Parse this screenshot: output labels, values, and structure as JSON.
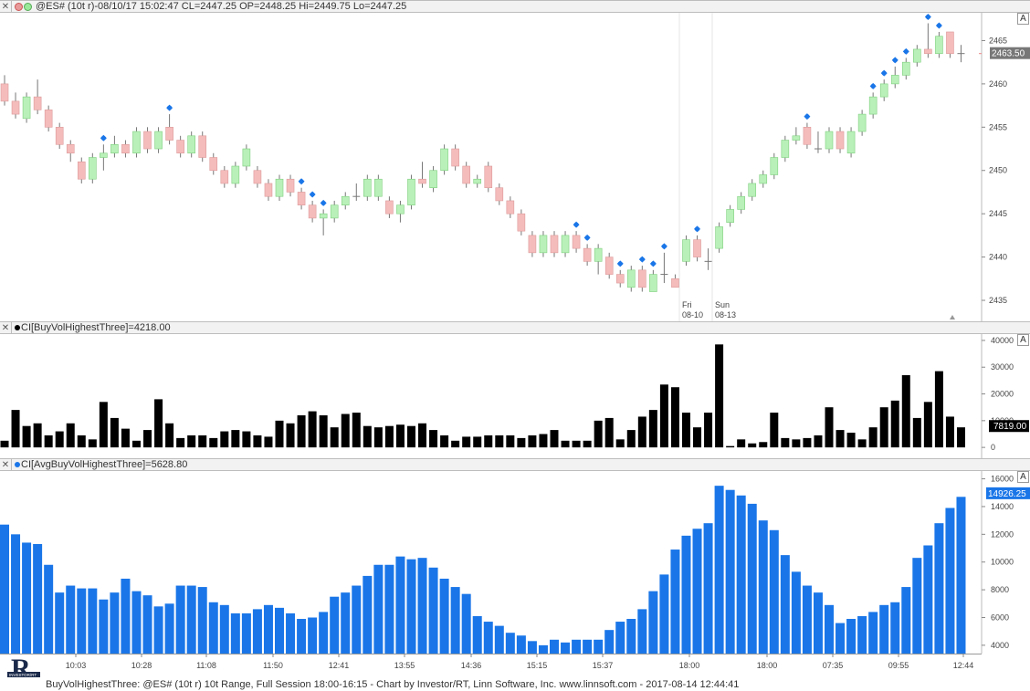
{
  "price_pane": {
    "header": "@ES# (10t r)-08/10/17 15:02:47 CL=2447.25 OP=2448.25 Hi=2449.75 Lo=2447.25",
    "y_ticks": [
      "2465",
      "2460",
      "2455",
      "2450",
      "2445",
      "2440",
      "2435"
    ],
    "last_price": "2463.50",
    "date_labels": [
      {
        "day": "Fri",
        "date": "08-10"
      },
      {
        "day": "Sun",
        "date": "08-13"
      }
    ],
    "colors": {
      "up": "#b9f0b9",
      "down": "#f5bcbc",
      "marker": "#1a76e8"
    }
  },
  "vol_pane": {
    "header": "CI[BuyVolHighestThree]=4218.00",
    "y_ticks": [
      "40000",
      "30000",
      "20000",
      "10000",
      "0"
    ],
    "last_value": "7819.00",
    "color": "#000000"
  },
  "avg_pane": {
    "header": "CI[AvgBuyVolHighestThree]=5628.80",
    "y_ticks": [
      "16000",
      "14000",
      "12000",
      "10000",
      "8000",
      "6000",
      "4000"
    ],
    "last_value": "14926.25",
    "color": "#1a76e8"
  },
  "x_axis": {
    "labels": [
      "10:03",
      "10:28",
      "11:08",
      "11:50",
      "12:41",
      "13:55",
      "14:36",
      "15:15",
      "15:37",
      "18:00",
      "18:00",
      "07:35",
      "09:55",
      "12:44"
    ]
  },
  "footer": "BuyVolHighestThree: @ES# (10t r) 10t Range, Full Session 18:00-16:15 - Chart by Investor/RT, Linn Software, Inc. www.linnsoft.com - 2017-08-14 12:44:41",
  "logo": {
    "letter": "R",
    "text": "INVESTOR/RT"
  },
  "chart_data": [
    {
      "type": "candlestick",
      "title": "@ES# (10t r)",
      "ylim": [
        2433,
        2468
      ],
      "candles": [
        [
          2460.0,
          2458.0,
          2461.0,
          2457.5
        ],
        [
          2458.0,
          2456.5,
          2459.0,
          2456.0
        ],
        [
          2456.0,
          2458.5,
          2459.0,
          2455.5
        ],
        [
          2458.5,
          2457.0,
          2460.5,
          2456.5
        ],
        [
          2457.0,
          2455.0,
          2457.5,
          2454.5
        ],
        [
          2455.0,
          2453.0,
          2455.5,
          2452.5
        ],
        [
          2453.0,
          2452.0,
          2453.5,
          2451.0
        ],
        [
          2451.0,
          2449.0,
          2451.5,
          2448.5
        ],
        [
          2449.0,
          2451.5,
          2452.0,
          2448.5
        ],
        [
          2451.5,
          2452.0,
          2453.0,
          2450.0
        ],
        [
          2452.0,
          2453.0,
          2454.0,
          2451.5
        ],
        [
          2453.0,
          2452.0,
          2453.5,
          2451.5
        ],
        [
          2452.0,
          2454.5,
          2455.0,
          2451.5
        ],
        [
          2454.5,
          2452.5,
          2455.0,
          2452.0
        ],
        [
          2452.5,
          2454.5,
          2455.0,
          2452.0
        ],
        [
          2455.0,
          2453.5,
          2456.5,
          2453.0
        ],
        [
          2453.5,
          2452.0,
          2454.0,
          2451.5
        ],
        [
          2452.0,
          2454.0,
          2454.5,
          2451.5
        ],
        [
          2454.0,
          2451.5,
          2454.5,
          2451.0
        ],
        [
          2451.5,
          2450.0,
          2452.0,
          2449.5
        ],
        [
          2450.0,
          2448.5,
          2450.5,
          2448.0
        ],
        [
          2448.5,
          2450.5,
          2451.0,
          2448.0
        ],
        [
          2450.5,
          2452.5,
          2453.0,
          2450.0
        ],
        [
          2450.0,
          2448.5,
          2450.5,
          2448.0
        ],
        [
          2448.5,
          2447.0,
          2449.0,
          2446.5
        ],
        [
          2447.0,
          2449.0,
          2449.5,
          2446.5
        ],
        [
          2449.0,
          2447.5,
          2449.5,
          2447.0
        ],
        [
          2447.5,
          2446.0,
          2448.0,
          2445.5
        ],
        [
          2446.0,
          2444.5,
          2446.5,
          2444.0
        ],
        [
          2444.5,
          2445.0,
          2445.5,
          2442.5
        ],
        [
          2444.5,
          2446.0,
          2446.5,
          2444.0
        ],
        [
          2446.0,
          2447.0,
          2447.5,
          2445.5
        ],
        [
          2447.0,
          2447.0,
          2448.5,
          2446.5
        ],
        [
          2447.0,
          2449.0,
          2449.5,
          2446.5
        ],
        [
          2447.0,
          2449.0,
          2449.5,
          2446.5
        ],
        [
          2446.5,
          2445.0,
          2447.0,
          2444.5
        ],
        [
          2445.0,
          2446.0,
          2446.5,
          2444.0
        ],
        [
          2446.0,
          2449.0,
          2449.5,
          2445.5
        ],
        [
          2449.0,
          2448.5,
          2451.0,
          2448.0
        ],
        [
          2448.0,
          2450.0,
          2450.5,
          2447.5
        ],
        [
          2450.0,
          2452.5,
          2453.0,
          2449.5
        ],
        [
          2452.5,
          2450.5,
          2453.0,
          2450.0
        ],
        [
          2450.5,
          2448.5,
          2451.0,
          2448.0
        ],
        [
          2448.5,
          2449.0,
          2449.5,
          2448.0
        ],
        [
          2450.5,
          2448.0,
          2451.0,
          2447.5
        ],
        [
          2448.0,
          2446.5,
          2448.5,
          2446.0
        ],
        [
          2446.5,
          2445.0,
          2447.0,
          2444.5
        ],
        [
          2445.0,
          2443.0,
          2445.5,
          2442.5
        ],
        [
          2442.5,
          2440.5,
          2443.0,
          2440.0
        ],
        [
          2440.5,
          2442.5,
          2443.0,
          2440.0
        ],
        [
          2442.5,
          2440.5,
          2443.0,
          2440.0
        ],
        [
          2440.5,
          2442.5,
          2443.0,
          2440.0
        ],
        [
          2442.5,
          2441.0,
          2443.0,
          2440.5
        ],
        [
          2441.0,
          2439.5,
          2441.5,
          2439.0
        ],
        [
          2439.5,
          2441.0,
          2441.5,
          2438.0
        ],
        [
          2440.0,
          2438.0,
          2440.5,
          2437.5
        ],
        [
          2438.0,
          2437.0,
          2438.5,
          2436.5
        ],
        [
          2436.5,
          2438.5,
          2439.0,
          2436.0
        ],
        [
          2438.5,
          2436.5,
          2439.0,
          2436.0
        ],
        [
          2436.0,
          2438.0,
          2438.5,
          2436.0
        ],
        [
          2438.0,
          2438.0,
          2440.5,
          2437.0
        ],
        [
          2437.5,
          2436.5,
          2438.0,
          2436.5
        ],
        [
          2439.5,
          2442.0,
          2442.5,
          2439.0
        ],
        [
          2442.0,
          2440.0,
          2442.5,
          2439.5
        ],
        [
          2439.5,
          2439.5,
          2441.0,
          2438.5
        ],
        [
          2441.0,
          2443.5,
          2444.0,
          2440.5
        ],
        [
          2444.0,
          2445.5,
          2446.0,
          2443.5
        ],
        [
          2445.5,
          2447.0,
          2447.5,
          2445.0
        ],
        [
          2447.0,
          2448.5,
          2449.0,
          2446.5
        ],
        [
          2448.5,
          2449.5,
          2450.0,
          2448.0
        ],
        [
          2449.5,
          2451.5,
          2452.0,
          2449.0
        ],
        [
          2451.5,
          2453.5,
          2454.0,
          2451.0
        ],
        [
          2453.5,
          2454.0,
          2455.0,
          2453.0
        ],
        [
          2455.0,
          2453.0,
          2455.5,
          2452.5
        ],
        [
          2452.5,
          2452.5,
          2454.5,
          2452.0
        ],
        [
          2452.5,
          2454.5,
          2455.0,
          2452.0
        ],
        [
          2454.5,
          2452.5,
          2455.0,
          2452.0
        ],
        [
          2452.0,
          2454.5,
          2455.0,
          2451.5
        ],
        [
          2454.5,
          2456.5,
          2457.0,
          2454.0
        ],
        [
          2456.5,
          2458.5,
          2459.0,
          2456.0
        ],
        [
          2458.5,
          2460.0,
          2460.5,
          2458.0
        ],
        [
          2460.0,
          2461.0,
          2462.0,
          2459.5
        ],
        [
          2461.0,
          2462.5,
          2463.0,
          2460.5
        ],
        [
          2462.5,
          2464.0,
          2464.5,
          2462.0
        ],
        [
          2464.0,
          2463.5,
          2467.0,
          2463.0
        ],
        [
          2463.5,
          2465.5,
          2466.0,
          2463.0
        ],
        [
          2466.0,
          2463.5,
          2466.0,
          2463.0
        ],
        [
          2463.5,
          2463.5,
          2464.5,
          2462.5
        ]
      ],
      "signals": [
        9,
        15,
        27,
        28,
        29,
        52,
        53,
        56,
        58,
        59,
        60,
        63,
        73,
        79,
        80,
        81,
        82,
        84,
        85
      ]
    },
    {
      "type": "bar",
      "title": "CI[BuyVolHighestThree]",
      "ylim": [
        -2000,
        41000
      ],
      "values": [
        2500,
        14000,
        8000,
        9000,
        4500,
        6000,
        9000,
        4500,
        3000,
        17000,
        11000,
        7000,
        2500,
        6500,
        18000,
        9000,
        3500,
        4500,
        4500,
        3500,
        6000,
        6500,
        6000,
        4500,
        4000,
        10000,
        9000,
        12000,
        13500,
        12000,
        7500,
        12500,
        13000,
        8000,
        7500,
        8000,
        8500,
        8000,
        9000,
        6500,
        4500,
        2500,
        4000,
        4000,
        4500,
        4500,
        4500,
        3500,
        4500,
        5000,
        6500,
        2500,
        2500,
        2500,
        10000,
        11000,
        3000,
        6500,
        11500,
        14000,
        23500,
        22500,
        13000,
        7500,
        13000,
        38500,
        500,
        3000,
        1500,
        2000,
        13000,
        3500,
        3000,
        3500,
        4500,
        15000,
        6500,
        5500,
        3000,
        7500,
        15000,
        17500,
        27000,
        11000,
        17000,
        28500,
        11500,
        7500
      ]
    },
    {
      "type": "bar",
      "title": "CI[AvgBuyVolHighestThree]",
      "ylim": [
        3400,
        16300
      ],
      "values": [
        12700,
        12000,
        11400,
        11300,
        9800,
        7800,
        8300,
        8100,
        8100,
        7300,
        7800,
        8800,
        7900,
        7600,
        6800,
        7000,
        8300,
        8300,
        8200,
        7100,
        6900,
        6300,
        6300,
        6600,
        6900,
        6700,
        6300,
        5900,
        6000,
        6400,
        7500,
        7800,
        8300,
        9000,
        9800,
        9800,
        10400,
        10200,
        10300,
        9600,
        8800,
        8200,
        7700,
        6100,
        5700,
        5400,
        4900,
        4700,
        4300,
        4000,
        4400,
        4200,
        4400,
        4400,
        4400,
        5100,
        5700,
        5900,
        6600,
        7900,
        9100,
        10900,
        11900,
        12400,
        12800,
        15500,
        15200,
        14800,
        14200,
        13000,
        12300,
        10500,
        9300,
        8300,
        7800,
        6900,
        5600,
        5900,
        6100,
        6400,
        6900,
        7100,
        8200,
        10300,
        11200,
        12800,
        13900,
        14700
      ]
    }
  ]
}
